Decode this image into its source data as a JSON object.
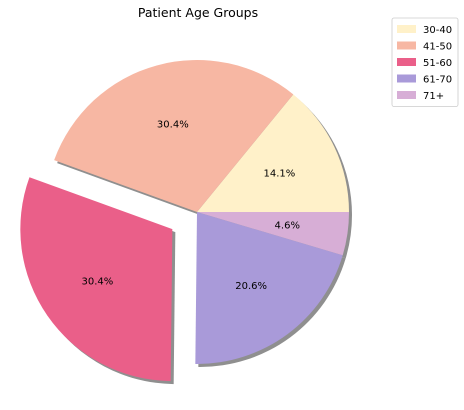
{
  "chart_data": {
    "type": "pie",
    "title": "Patient Age Groups",
    "categories": [
      "30-40",
      "41-50",
      "51-60",
      "61-70",
      "71+"
    ],
    "values": [
      14.1,
      30.4,
      30.4,
      20.6,
      4.6
    ],
    "value_labels": [
      "14.1%",
      "30.4%",
      "30.4%",
      "20.6%",
      "4.6%"
    ],
    "colors": [
      "#fff1c9",
      "#f7b7a3",
      "#ea5f89",
      "#a99ad9",
      "#d7aed6"
    ],
    "exploded": [
      "51-60"
    ],
    "shadow": true,
    "legend_position": "top-right"
  }
}
